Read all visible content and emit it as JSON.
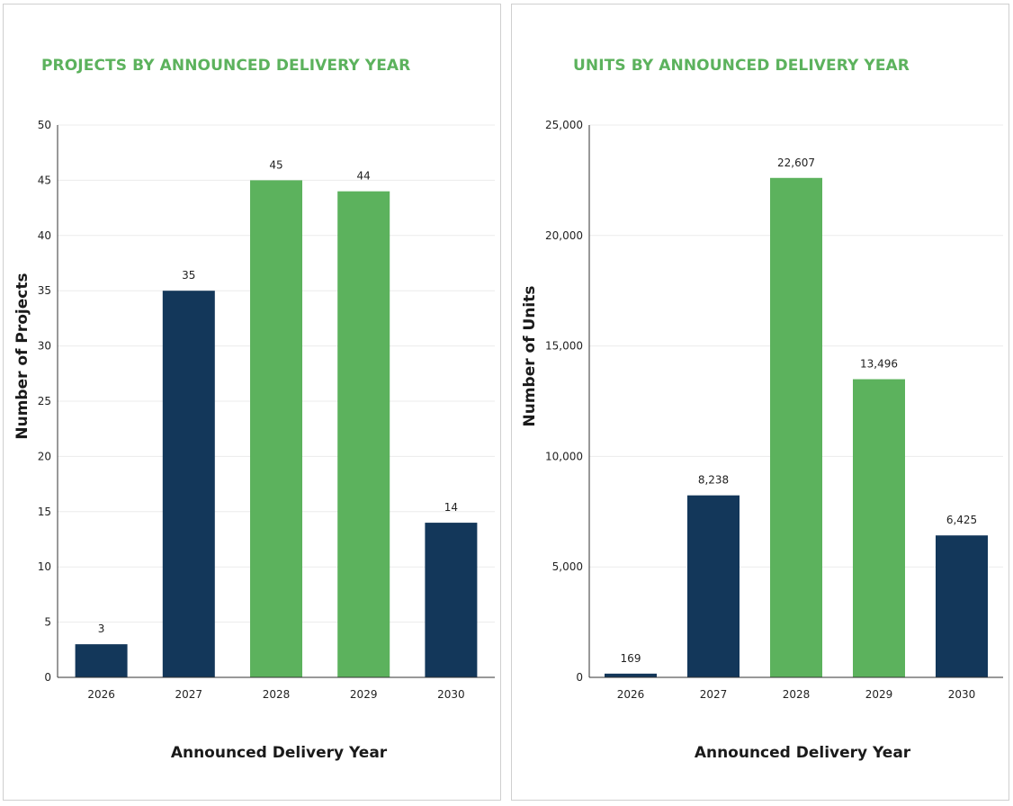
{
  "colors": {
    "navy": "#13375a",
    "green": "#5cb25d",
    "title": "#5cb25d"
  },
  "chart_data": [
    {
      "type": "bar",
      "title": "PROJECTS BY ANNOUNCED DELIVERY YEAR",
      "xlabel": "Announced Delivery Year",
      "ylabel": "Number of Projects",
      "categories": [
        "2026",
        "2027",
        "2028",
        "2029",
        "2030"
      ],
      "values": [
        3,
        35,
        45,
        44,
        14
      ],
      "value_labels": [
        "3",
        "35",
        "45",
        "44",
        "14"
      ],
      "bar_colors": [
        "navy",
        "navy",
        "green",
        "green",
        "navy"
      ],
      "ylim": [
        0,
        50
      ],
      "yticks": [
        0,
        5,
        10,
        15,
        20,
        25,
        30,
        35,
        40,
        45,
        50
      ],
      "ytick_labels": [
        "0",
        "5",
        "10",
        "15",
        "20",
        "25",
        "30",
        "35",
        "40",
        "45",
        "50"
      ],
      "grid": true,
      "legend": "none"
    },
    {
      "type": "bar",
      "title": "UNITS BY ANNOUNCED DELIVERY YEAR",
      "xlabel": "Announced Delivery Year",
      "ylabel": "Number of Units",
      "categories": [
        "2026",
        "2027",
        "2028",
        "2029",
        "2030"
      ],
      "values": [
        169,
        8238,
        22607,
        13496,
        6425
      ],
      "value_labels": [
        "169",
        "8,238",
        "22,607",
        "13,496",
        "6,425"
      ],
      "bar_colors": [
        "navy",
        "navy",
        "green",
        "green",
        "navy"
      ],
      "ylim": [
        0,
        25000
      ],
      "yticks": [
        0,
        5000,
        10000,
        15000,
        20000,
        25000
      ],
      "ytick_labels": [
        "0",
        "5,000",
        "10,000",
        "15,000",
        "20,000",
        "25,000"
      ],
      "grid": true,
      "legend": "none"
    }
  ]
}
